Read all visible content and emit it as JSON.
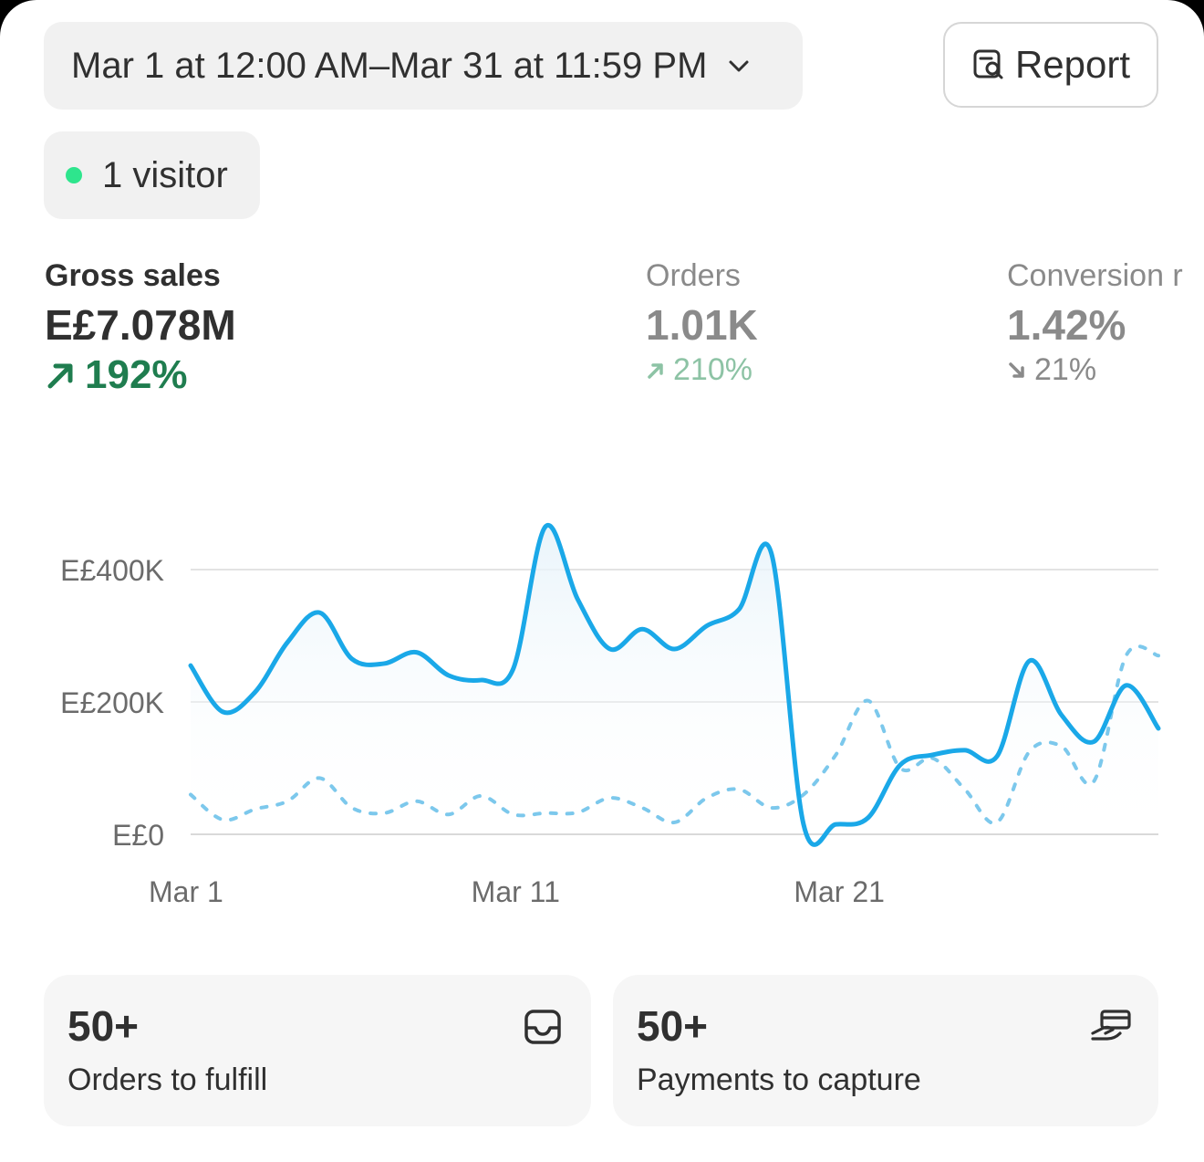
{
  "header": {
    "date_range_label": "Mar 1 at 12:00 AM–Mar 31 at 11:59 PM",
    "report_label": "Report"
  },
  "live": {
    "visitors_label": "1 visitor",
    "dot_color": "#2ee58d"
  },
  "metrics": [
    {
      "label": "Gross sales",
      "value": "E£7.078M",
      "delta": "192%",
      "direction": "up"
    },
    {
      "label": "Orders",
      "value": "1.01K",
      "delta": "210%",
      "direction": "up"
    },
    {
      "label": "Conversion r",
      "value": "1.42%",
      "delta": "21%",
      "direction": "down"
    }
  ],
  "chart_data": {
    "type": "line",
    "title": "",
    "xlabel": "",
    "ylabel": "",
    "x": [
      1,
      2,
      3,
      4,
      5,
      6,
      7,
      8,
      9,
      10,
      11,
      12,
      13,
      14,
      15,
      16,
      17,
      18,
      19,
      20,
      21,
      22,
      23,
      24,
      25,
      26,
      27,
      28,
      29,
      30,
      31
    ],
    "x_ticks": [
      1,
      11,
      21
    ],
    "x_tick_labels": [
      "Mar 1",
      "Mar 11",
      "Mar 21"
    ],
    "y_ticks": [
      0,
      200000,
      400000
    ],
    "y_tick_labels": [
      "E£0",
      "E£200K",
      "E£400K"
    ],
    "ylim": [
      0,
      400000
    ],
    "grid": true,
    "series": [
      {
        "style": "solid",
        "color": "#1aa8e8",
        "values": [
          255000,
          185000,
          215000,
          290000,
          335000,
          265000,
          258000,
          275000,
          240000,
          233000,
          250000,
          465000,
          355000,
          280000,
          310000,
          280000,
          315000,
          340000,
          425000,
          15000,
          15000,
          25000,
          105000,
          120000,
          127000,
          118000,
          262000,
          180000,
          140000,
          225000,
          160000
        ]
      },
      {
        "style": "dashed",
        "color": "#7cc8ec",
        "values": [
          60000,
          22000,
          38000,
          50000,
          85000,
          40000,
          32000,
          50000,
          30000,
          58000,
          30000,
          32000,
          33000,
          55000,
          40000,
          18000,
          55000,
          68000,
          40000,
          60000,
          120000,
          202000,
          100000,
          115000,
          68000,
          18000,
          125000,
          133000,
          80000,
          270000,
          270000
        ]
      }
    ]
  },
  "cards": [
    {
      "count": "50+",
      "label": "Orders to fulfill",
      "icon": "inbox-icon"
    },
    {
      "count": "50+",
      "label": "Payments to capture",
      "icon": "hand-card-icon"
    }
  ]
}
